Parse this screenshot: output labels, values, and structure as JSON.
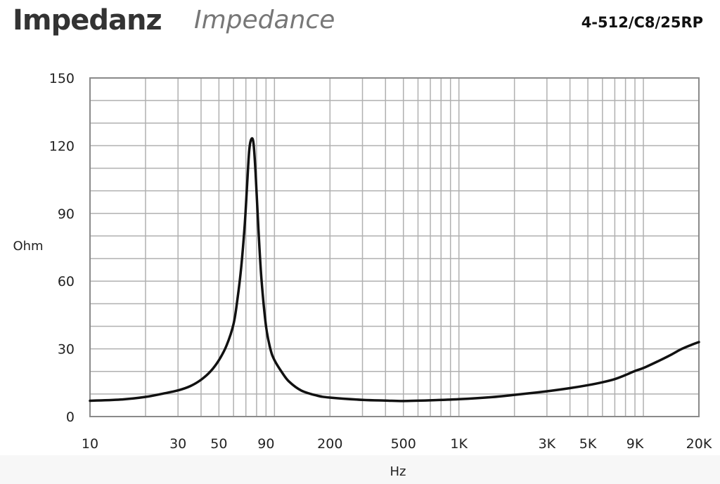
{
  "header": {
    "title_de": "Impedanz",
    "title_en": "Impedance",
    "model": "4-512/C8/25RP"
  },
  "chart_data": {
    "type": "line",
    "xlabel": "Hz",
    "ylabel": "Ohm",
    "x_scale": "log",
    "xlim": [
      10,
      20000
    ],
    "ylim": [
      0,
      150
    ],
    "grid": true,
    "x_ticks": [
      {
        "value": 10,
        "label": "10"
      },
      {
        "value": 30,
        "label": "30"
      },
      {
        "value": 50,
        "label": "50"
      },
      {
        "value": 90,
        "label": "90"
      },
      {
        "value": 200,
        "label": "200"
      },
      {
        "value": 500,
        "label": "500"
      },
      {
        "value": 1000,
        "label": "1K"
      },
      {
        "value": 3000,
        "label": "3K"
      },
      {
        "value": 5000,
        "label": "5K"
      },
      {
        "value": 9000,
        "label": "9K"
      },
      {
        "value": 20000,
        "label": "20K"
      }
    ],
    "y_ticks": [
      {
        "value": 0,
        "label": "0"
      },
      {
        "value": 30,
        "label": "30"
      },
      {
        "value": 60,
        "label": "60"
      },
      {
        "value": 90,
        "label": "90"
      },
      {
        "value": 120,
        "label": "120"
      },
      {
        "value": 150,
        "label": "150"
      }
    ],
    "series": [
      {
        "color": "#111111",
        "x": [
          10,
          15,
          20,
          25,
          30,
          35,
          40,
          45,
          50,
          55,
          60,
          63,
          66,
          69,
          71,
          73,
          75,
          77,
          79,
          82,
          85,
          90,
          95,
          100,
          110,
          120,
          140,
          170,
          200,
          300,
          400,
          500,
          700,
          1000,
          1500,
          2000,
          3000,
          4000,
          5000,
          6000,
          7000,
          8000,
          9000,
          10000,
          12000,
          14000,
          16000,
          18000,
          20000
        ],
        "y": [
          7,
          7.6,
          8.7,
          10.2,
          11.6,
          13.5,
          16.3,
          20,
          25,
          31.5,
          41,
          52,
          66,
          85,
          102,
          118,
          123,
          121,
          108,
          82,
          61,
          40,
          30,
          25,
          19.5,
          15.5,
          11.5,
          9.3,
          8.4,
          7.4,
          7.1,
          6.9,
          7.2,
          7.7,
          8.6,
          9.6,
          11.2,
          12.6,
          13.9,
          15.2,
          16.6,
          18.4,
          20.2,
          21.5,
          24.5,
          27.2,
          29.8,
          31.6,
          33
        ]
      }
    ]
  }
}
